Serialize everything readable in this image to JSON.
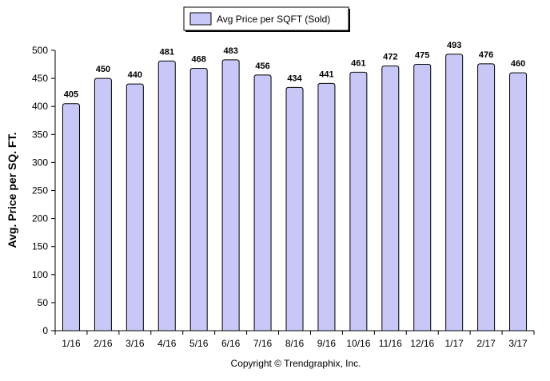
{
  "chart_data": {
    "type": "bar",
    "categories": [
      "1/16",
      "2/16",
      "3/16",
      "4/16",
      "5/16",
      "6/16",
      "7/16",
      "8/16",
      "9/16",
      "10/16",
      "11/16",
      "12/16",
      "1/17",
      "2/17",
      "3/17"
    ],
    "series": [
      {
        "name": "Avg Price per SQFT (Sold)",
        "values": [
          405,
          450,
          440,
          481,
          468,
          483,
          456,
          434,
          441,
          461,
          472,
          475,
          493,
          476,
          460
        ]
      }
    ],
    "title": "",
    "xlabel": "",
    "ylabel": "Avg. Price per SQ. FT.",
    "ylim": [
      0,
      500
    ],
    "yticks": [
      0,
      50,
      100,
      150,
      200,
      250,
      300,
      350,
      400,
      450,
      500
    ],
    "grid": false,
    "legend_position": "top-center",
    "colors": {
      "bar_fill": "#c8c8f8",
      "bar_stroke": "#000000",
      "legend_box_fill": "#c8c8f8"
    },
    "footer": "Copyright © Trendgraphix, Inc."
  }
}
